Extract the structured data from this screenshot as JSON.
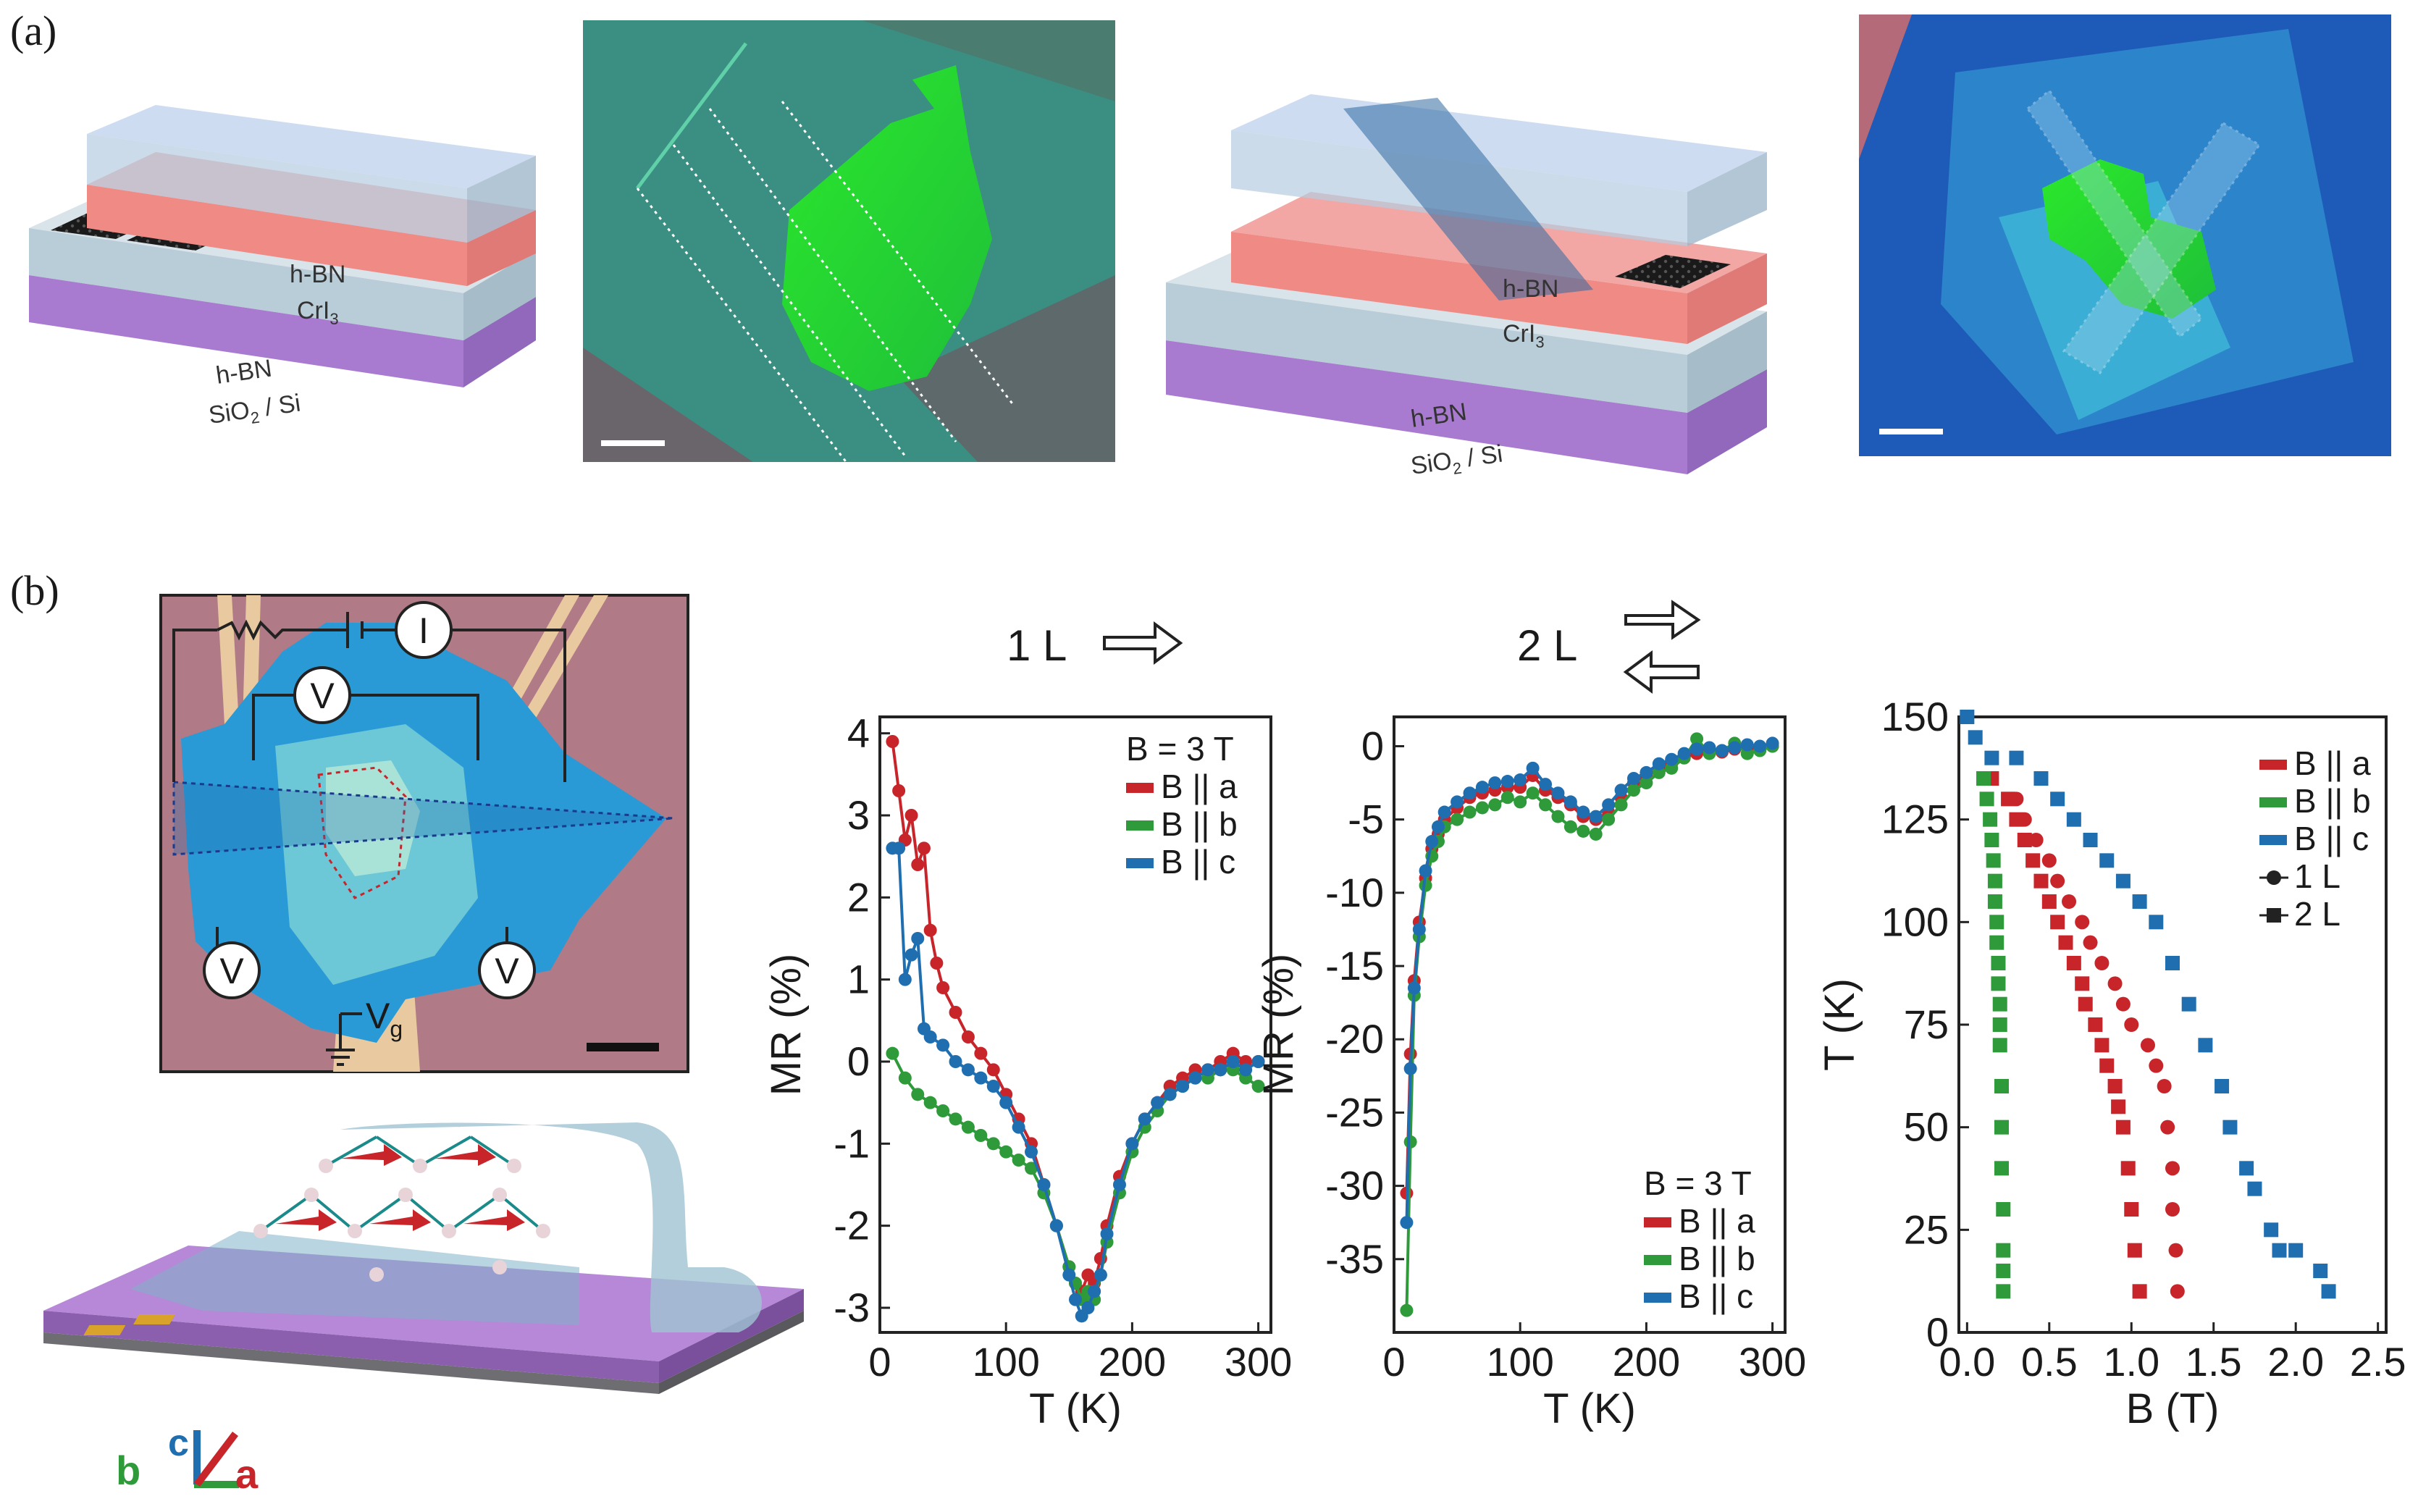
{
  "figure": {
    "panel_a": "(a)",
    "panel_b": "(b)",
    "stack1": {
      "top": "h-BN",
      "mid_html": "CrI",
      "mid_sub": "3",
      "bottom": "h-BN",
      "substrate": "SiO",
      "sub2": "2",
      "substrate_rest": " / Si"
    },
    "stack2": {
      "top": "h-BN",
      "mid_html": "CrI",
      "mid_sub": "3",
      "bottom": "h-BN",
      "substrate": "SiO",
      "sub2": "2",
      "substrate_rest": " / Si"
    },
    "circuit": {
      "current": "I",
      "voltage": "V",
      "gate": "V",
      "gate_sub": "g"
    },
    "axes_triad": {
      "b": "b",
      "c": "c",
      "a": "a"
    },
    "header_1L": "1 L",
    "header_2L": "2 L",
    "colors": {
      "a": "#c8252b",
      "b": "#2e9a3a",
      "c": "#1f6eb0"
    }
  },
  "chart_data": [
    {
      "type": "line",
      "title": "1 L",
      "xlabel": "T (K)",
      "ylabel": "MR (%)",
      "xlim": [
        0,
        310
      ],
      "ylim": [
        -3.3,
        4.2
      ],
      "xticks": [
        0,
        100,
        200,
        300
      ],
      "yticks": [
        -3,
        -2,
        -1,
        0,
        1,
        2,
        3,
        4
      ],
      "legend_title": "B = 3 T",
      "series": [
        {
          "name": "B || a",
          "color": "#c8252b",
          "x": [
            10,
            15,
            20,
            25,
            30,
            35,
            40,
            45,
            50,
            60,
            70,
            80,
            90,
            100,
            110,
            120,
            130,
            140,
            150,
            155,
            160,
            165,
            170,
            175,
            180,
            190,
            200,
            210,
            220,
            230,
            240,
            250,
            260,
            270,
            280,
            290,
            300
          ],
          "y": [
            3.9,
            3.3,
            2.7,
            3.0,
            2.4,
            2.6,
            1.6,
            1.2,
            0.9,
            0.6,
            0.3,
            0.1,
            -0.1,
            -0.4,
            -0.7,
            -1.0,
            -1.5,
            -2.0,
            -2.5,
            -2.7,
            -2.8,
            -2.6,
            -2.7,
            -2.4,
            -2.0,
            -1.4,
            -1.0,
            -0.7,
            -0.5,
            -0.3,
            -0.2,
            -0.1,
            -0.1,
            0.0,
            0.1,
            0.0,
            0.0
          ]
        },
        {
          "name": "B || b",
          "color": "#2e9a3a",
          "x": [
            10,
            20,
            30,
            40,
            50,
            60,
            70,
            80,
            90,
            100,
            110,
            120,
            130,
            140,
            150,
            155,
            160,
            165,
            170,
            175,
            180,
            190,
            200,
            210,
            220,
            230,
            240,
            250,
            260,
            270,
            280,
            290,
            300
          ],
          "y": [
            0.1,
            -0.2,
            -0.4,
            -0.5,
            -0.6,
            -0.7,
            -0.8,
            -0.9,
            -1.0,
            -1.1,
            -1.2,
            -1.3,
            -1.6,
            -2.0,
            -2.5,
            -2.7,
            -2.9,
            -2.8,
            -2.9,
            -2.6,
            -2.2,
            -1.6,
            -1.1,
            -0.8,
            -0.6,
            -0.4,
            -0.3,
            -0.2,
            -0.2,
            -0.1,
            -0.1,
            -0.2,
            -0.3
          ]
        },
        {
          "name": "B || c",
          "color": "#1f6eb0",
          "x": [
            10,
            15,
            20,
            25,
            30,
            35,
            40,
            50,
            60,
            70,
            80,
            90,
            100,
            110,
            120,
            130,
            140,
            150,
            155,
            160,
            165,
            170,
            175,
            180,
            190,
            200,
            210,
            220,
            230,
            240,
            250,
            260,
            270,
            280,
            290,
            300
          ],
          "y": [
            2.6,
            2.6,
            1.0,
            1.3,
            1.5,
            0.4,
            0.3,
            0.2,
            0.0,
            -0.1,
            -0.2,
            -0.3,
            -0.5,
            -0.8,
            -1.1,
            -1.5,
            -2.0,
            -2.6,
            -2.9,
            -3.1,
            -3.0,
            -2.8,
            -2.6,
            -2.1,
            -1.5,
            -1.0,
            -0.7,
            -0.5,
            -0.4,
            -0.3,
            -0.2,
            -0.1,
            -0.1,
            0.0,
            -0.1,
            0.0
          ]
        }
      ]
    },
    {
      "type": "line",
      "title": "2 L",
      "xlabel": "T (K)",
      "ylabel": "MR (%)",
      "xlim": [
        0,
        310
      ],
      "ylim": [
        -40,
        2
      ],
      "xticks": [
        0,
        100,
        200,
        300
      ],
      "yticks": [
        -35,
        -30,
        -25,
        -20,
        -15,
        -10,
        -5,
        0
      ],
      "legend_title": "B = 3 T",
      "series": [
        {
          "name": "B || a",
          "color": "#c8252b",
          "x": [
            10,
            13,
            16,
            20,
            25,
            30,
            35,
            40,
            50,
            60,
            70,
            80,
            90,
            100,
            110,
            120,
            130,
            140,
            150,
            160,
            170,
            180,
            190,
            200,
            210,
            220,
            230,
            240,
            250,
            260,
            270,
            280,
            290,
            300
          ],
          "y": [
            -30.5,
            -21,
            -16,
            -12,
            -9,
            -7,
            -6,
            -5,
            -4.2,
            -3.5,
            -3.2,
            -3.0,
            -2.8,
            -2.8,
            -2.0,
            -3.0,
            -3.5,
            -4.0,
            -4.8,
            -5.0,
            -4.5,
            -3.5,
            -2.5,
            -2.0,
            -1.5,
            -1.2,
            -0.8,
            -0.5,
            -0.3,
            -0.4,
            -0.2,
            -0.1,
            -0.2,
            0.0
          ]
        },
        {
          "name": "B || b",
          "color": "#2e9a3a",
          "x": [
            10,
            13,
            16,
            20,
            25,
            30,
            35,
            40,
            50,
            60,
            70,
            80,
            90,
            100,
            110,
            120,
            130,
            140,
            150,
            160,
            170,
            180,
            190,
            200,
            210,
            220,
            230,
            240,
            250,
            260,
            270,
            280,
            290,
            300
          ],
          "y": [
            -38.5,
            -27,
            -17,
            -13,
            -9.5,
            -7.5,
            -6.5,
            -5.5,
            -5.0,
            -4.5,
            -4.2,
            -4.0,
            -3.5,
            -3.8,
            -3.2,
            -4.0,
            -4.8,
            -5.5,
            -5.8,
            -6.0,
            -5.0,
            -4.0,
            -3.0,
            -2.5,
            -1.8,
            -1.5,
            -0.8,
            0.5,
            -0.5,
            -0.3,
            0.2,
            -0.5,
            -0.3,
            0.0
          ]
        },
        {
          "name": "B || c",
          "color": "#1f6eb0",
          "x": [
            10,
            13,
            16,
            20,
            25,
            30,
            35,
            40,
            50,
            60,
            70,
            80,
            90,
            100,
            110,
            120,
            130,
            140,
            150,
            160,
            170,
            180,
            190,
            200,
            210,
            220,
            230,
            240,
            250,
            260,
            270,
            280,
            290,
            300
          ],
          "y": [
            -32.5,
            -22,
            -16.5,
            -12.5,
            -8.5,
            -6.5,
            -5.5,
            -4.5,
            -3.8,
            -3.2,
            -2.8,
            -2.5,
            -2.4,
            -2.3,
            -1.5,
            -2.6,
            -3.2,
            -3.8,
            -4.5,
            -4.8,
            -4.0,
            -3.0,
            -2.2,
            -1.8,
            -1.2,
            -0.9,
            -0.5,
            -0.2,
            -0.1,
            -0.3,
            -0.1,
            0.1,
            0.0,
            0.2
          ]
        }
      ]
    },
    {
      "type": "scatter",
      "title": "",
      "xlabel": "B (T)",
      "ylabel": "T (K)",
      "xlim": [
        -0.05,
        2.55
      ],
      "ylim": [
        0,
        150
      ],
      "xticks": [
        0.0,
        0.5,
        1.0,
        1.5,
        2.0,
        2.5
      ],
      "xticklabels": [
        "0.0",
        "0.5",
        "1.0",
        "1.5",
        "2.0",
        "2.5"
      ],
      "yticks": [
        0,
        25,
        50,
        75,
        100,
        125,
        150
      ],
      "legend": [
        "B || a",
        "B || b",
        "B || c"
      ],
      "marker_legend": [
        "1 L",
        "2 L"
      ],
      "series": [
        {
          "name": "B || a (1 L)",
          "color": "#c8252b",
          "marker": "circle",
          "x": [
            0.3,
            0.35,
            0.42,
            0.5,
            0.55,
            0.62,
            0.7,
            0.75,
            0.82,
            0.9,
            0.95,
            1.0,
            1.1,
            1.15,
            1.2,
            1.22,
            1.25,
            1.25,
            1.27,
            1.28
          ],
          "y": [
            130,
            125,
            120,
            115,
            110,
            105,
            100,
            95,
            90,
            85,
            80,
            75,
            70,
            65,
            60,
            50,
            40,
            30,
            20,
            10
          ]
        },
        {
          "name": "B || a (2 L)",
          "color": "#c8252b",
          "marker": "square",
          "x": [
            0.15,
            0.25,
            0.3,
            0.35,
            0.4,
            0.45,
            0.5,
            0.55,
            0.6,
            0.65,
            0.7,
            0.72,
            0.78,
            0.82,
            0.85,
            0.9,
            0.92,
            0.95,
            0.98,
            1.0,
            1.02,
            1.05
          ],
          "y": [
            135,
            130,
            125,
            120,
            115,
            110,
            105,
            100,
            95,
            90,
            85,
            80,
            75,
            70,
            65,
            60,
            55,
            50,
            40,
            30,
            20,
            10
          ]
        },
        {
          "name": "B || b (2 L)",
          "color": "#2e9a3a",
          "marker": "square",
          "x": [
            0.1,
            0.12,
            0.14,
            0.15,
            0.16,
            0.17,
            0.17,
            0.18,
            0.18,
            0.19,
            0.19,
            0.2,
            0.2,
            0.2,
            0.21,
            0.21,
            0.21,
            0.22,
            0.22,
            0.22,
            0.22
          ],
          "y": [
            135,
            130,
            125,
            120,
            115,
            110,
            105,
            100,
            95,
            90,
            85,
            80,
            75,
            70,
            60,
            50,
            40,
            30,
            20,
            15,
            10
          ]
        },
        {
          "name": "B || c (2 L)",
          "color": "#1f6eb0",
          "marker": "square",
          "x": [
            0.0,
            0.05,
            0.15,
            0.3,
            0.45,
            0.55,
            0.65,
            0.75,
            0.85,
            0.95,
            1.05,
            1.15,
            1.25,
            1.35,
            1.45,
            1.55,
            1.6,
            1.7,
            1.75,
            1.85,
            1.9,
            2.0,
            2.15,
            2.2
          ],
          "y": [
            150,
            145,
            140,
            140,
            135,
            130,
            125,
            120,
            115,
            110,
            105,
            100,
            90,
            80,
            70,
            60,
            50,
            40,
            35,
            25,
            20,
            20,
            15,
            10
          ]
        }
      ]
    }
  ]
}
